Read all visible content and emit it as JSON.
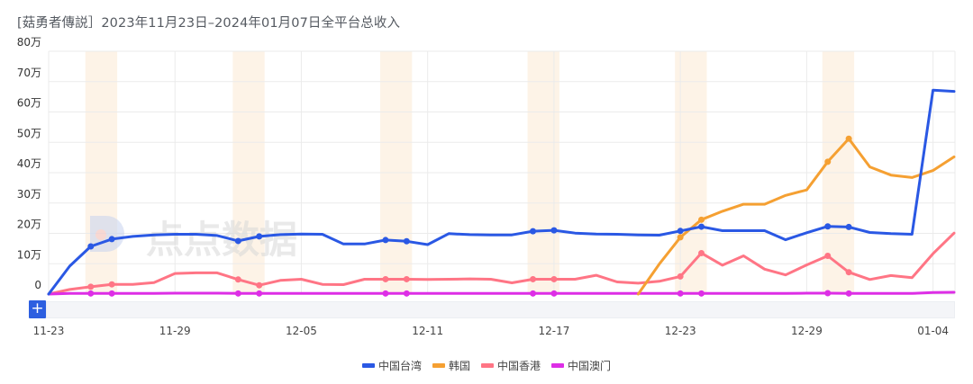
{
  "title": "[菇勇者傳説］2023年11月23日–2024年01月07日全平台总收入",
  "watermark": {
    "logo_icon": "dianshu-logo-icon",
    "text": "点点数据"
  },
  "zoom_button": {
    "label": "+"
  },
  "legend": [
    {
      "label": "中国台湾",
      "color": "#2a58e4"
    },
    {
      "label": "韩国",
      "color": "#f5a032"
    },
    {
      "label": "中国香港",
      "color": "#ff7585"
    },
    {
      "label": "中国澳门",
      "color": "#dd2ee6"
    }
  ],
  "chart_data": {
    "type": "line",
    "title": "[菇勇者傳説］2023年11月23日–2024年01月07日全平台总收入",
    "xlabel": "",
    "ylabel": "",
    "ylim": [
      0,
      80
    ],
    "y_unit": "万",
    "y_ticks": [
      "0",
      "10万",
      "20万",
      "30万",
      "40万",
      "50万",
      "60万",
      "70万",
      "80万"
    ],
    "x_ticks": [
      "11-23",
      "11-29",
      "12-05",
      "12-11",
      "12-17",
      "12-23",
      "12-29",
      "01-04"
    ],
    "x": [
      "11-23",
      "11-24",
      "11-25",
      "11-26",
      "11-27",
      "11-28",
      "11-29",
      "11-30",
      "12-01",
      "12-02",
      "12-03",
      "12-04",
      "12-05",
      "12-06",
      "12-07",
      "12-08",
      "12-09",
      "12-10",
      "12-11",
      "12-12",
      "12-13",
      "12-14",
      "12-15",
      "12-16",
      "12-17",
      "12-18",
      "12-19",
      "12-20",
      "12-21",
      "12-22",
      "12-23",
      "12-24",
      "12-25",
      "12-26",
      "12-27",
      "12-28",
      "12-29",
      "12-30",
      "12-31",
      "01-01",
      "01-02",
      "01-03",
      "01-04",
      "01-05"
    ],
    "highlight_bands": [
      [
        2,
        3
      ],
      [
        9,
        10
      ],
      [
        16,
        17
      ],
      [
        23,
        24
      ],
      [
        30,
        31
      ],
      [
        37,
        38
      ]
    ],
    "grid": true,
    "legend_position": "bottom",
    "series": [
      {
        "name": "中国台湾",
        "color": "#2a58e4",
        "values": [
          0,
          9.2,
          15.7,
          18.1,
          19,
          19.5,
          19.7,
          19.7,
          19.3,
          17.5,
          19,
          19.6,
          19.8,
          19.7,
          16.5,
          16.5,
          17.8,
          17.4,
          16.3,
          19.9,
          19.6,
          19.5,
          19.5,
          20.7,
          21,
          20.1,
          19.8,
          19.7,
          19.5,
          19.4,
          20.8,
          22.2,
          20.9,
          20.9,
          20.9,
          17.9,
          20.2,
          22.3,
          22.1,
          20.3,
          19.9,
          19.7,
          67.2,
          66.8
        ]
      },
      {
        "name": "韩国",
        "color": "#f5a032",
        "values": [
          null,
          null,
          null,
          null,
          null,
          null,
          null,
          null,
          null,
          null,
          null,
          null,
          null,
          null,
          null,
          null,
          null,
          null,
          null,
          null,
          null,
          null,
          null,
          null,
          null,
          null,
          null,
          null,
          0,
          9.9,
          18.7,
          24.5,
          27.3,
          29.6,
          29.6,
          32.5,
          34.3,
          43.6,
          51.2,
          41.9,
          39.2,
          38.4,
          40.7,
          45.2
        ]
      },
      {
        "name": "中国香港",
        "color": "#ff7585",
        "values": [
          0,
          1.5,
          2.4,
          3.2,
          3.2,
          3.8,
          6.8,
          7,
          7,
          4.8,
          2.9,
          4.5,
          4.9,
          3.2,
          3.1,
          4.9,
          4.9,
          4.9,
          4.8,
          4.9,
          5,
          4.9,
          3.7,
          4.9,
          4.9,
          4.9,
          6.2,
          4,
          3.6,
          4.2,
          5.8,
          13.5,
          9.5,
          12.6,
          8.2,
          6.3,
          9.6,
          12.6,
          7.2,
          4.8,
          6.1,
          5.4,
          13.3,
          20.1
        ]
      },
      {
        "name": "中国澳门",
        "color": "#dd2ee6",
        "values": [
          0,
          0.2,
          0.2,
          0.2,
          0.2,
          0.2,
          0.3,
          0.3,
          0.3,
          0.2,
          0.2,
          0.2,
          0.2,
          0.2,
          0.2,
          0.2,
          0.2,
          0.2,
          0.2,
          0.2,
          0.2,
          0.2,
          0.2,
          0.2,
          0.2,
          0.2,
          0.2,
          0.2,
          0.2,
          0.2,
          0.2,
          0.2,
          0.2,
          0.2,
          0.2,
          0.2,
          0.3,
          0.3,
          0.2,
          0.2,
          0.2,
          0.2,
          0.5,
          0.6
        ]
      }
    ]
  }
}
